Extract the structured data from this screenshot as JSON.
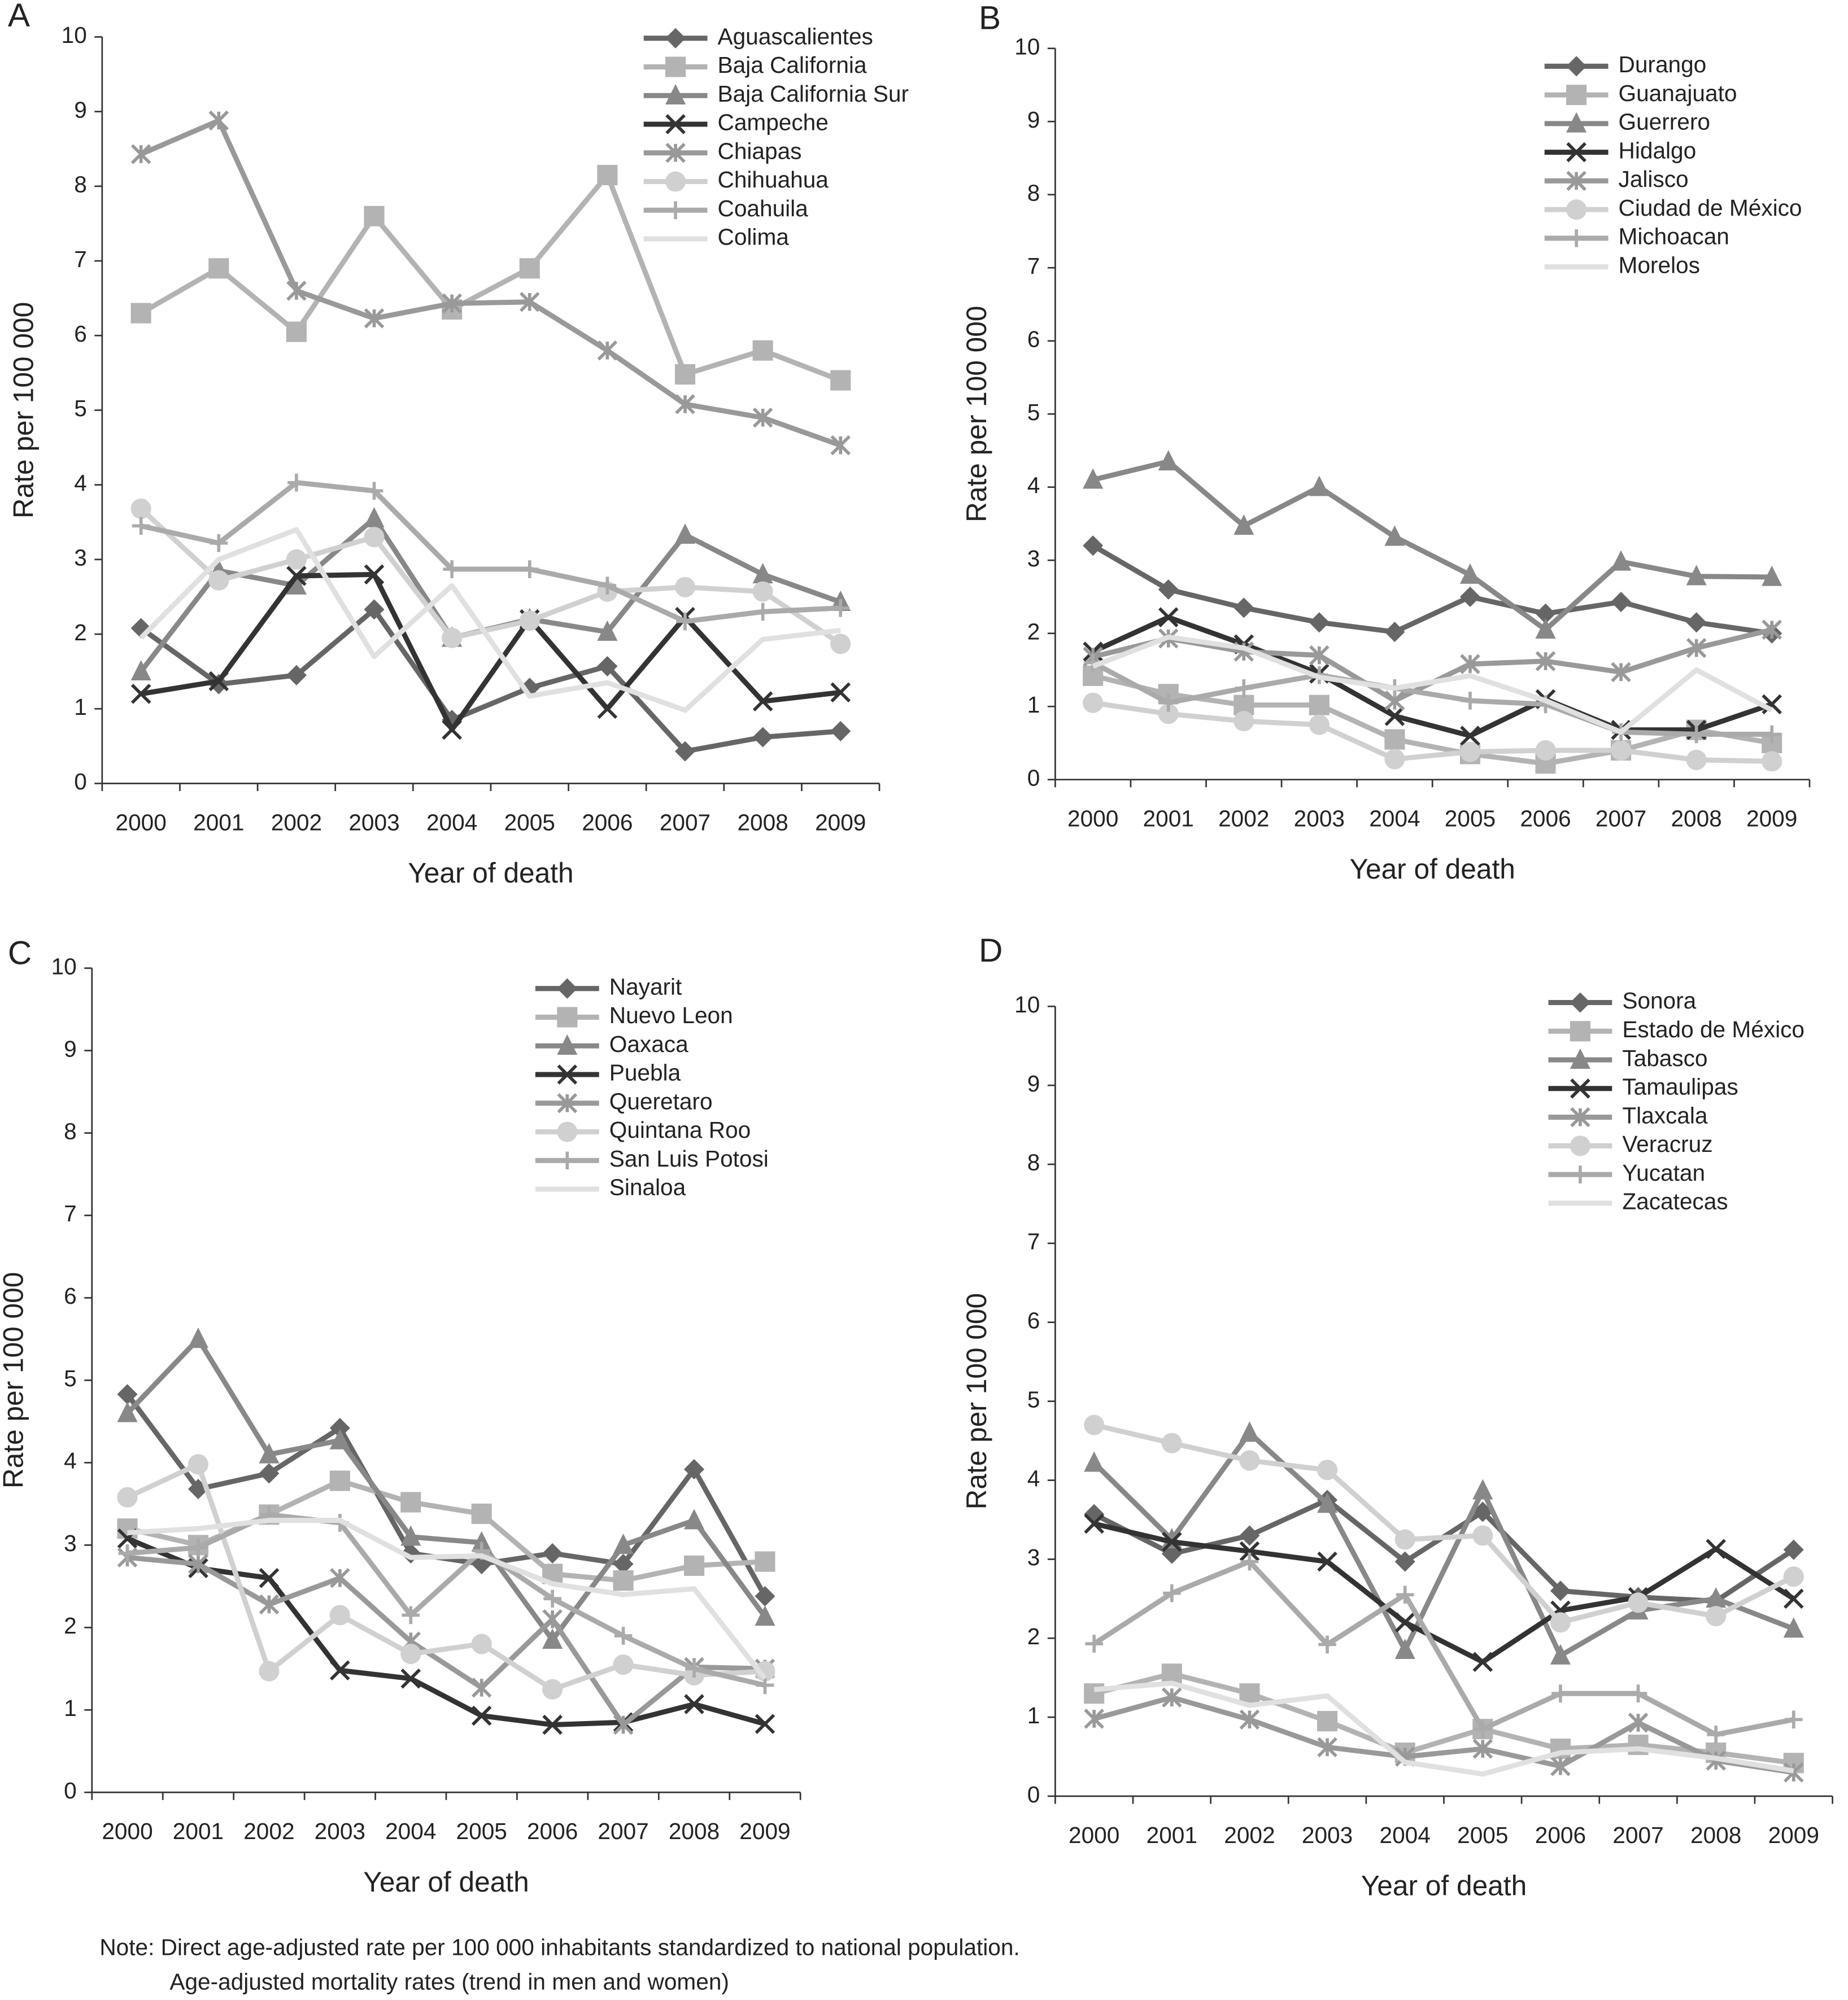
{
  "chart_data": [
    {
      "type": "line",
      "panel_label": "A",
      "xlabel": "Year of death",
      "ylabel": "Rate per 100 000",
      "categories": [
        "2000",
        "2001",
        "2002",
        "2003",
        "2004",
        "2005",
        "2006",
        "2007",
        "2008",
        "2009"
      ],
      "ylim": [
        0,
        10
      ],
      "yticks": [
        0,
        1,
        2,
        3,
        4,
        5,
        6,
        7,
        8,
        9,
        10
      ],
      "legend": "upper right",
      "series": [
        {
          "name": "Aguascalientes",
          "color": "#666666",
          "marker": "diamond",
          "values": [
            2.08,
            1.33,
            1.45,
            2.33,
            0.85,
            1.28,
            1.57,
            0.43,
            0.62,
            0.7
          ]
        },
        {
          "name": "Baja California",
          "color": "#b3b3b3",
          "marker": "square",
          "values": [
            6.3,
            6.9,
            6.05,
            7.6,
            6.35,
            6.9,
            8.15,
            5.48,
            5.8,
            5.4
          ]
        },
        {
          "name": "Baja California Sur",
          "color": "#888888",
          "marker": "triangle",
          "values": [
            1.5,
            2.85,
            2.65,
            3.55,
            1.95,
            2.2,
            2.03,
            3.33,
            2.8,
            2.43
          ]
        },
        {
          "name": "Campeche",
          "color": "#333333",
          "marker": "x",
          "values": [
            1.2,
            1.37,
            2.78,
            2.8,
            0.72,
            2.2,
            1.0,
            2.23,
            1.1,
            1.22
          ]
        },
        {
          "name": "Chiapas",
          "color": "#999999",
          "marker": "asterisk",
          "values": [
            8.43,
            8.88,
            6.6,
            6.23,
            6.43,
            6.45,
            5.8,
            5.08,
            4.9,
            4.53
          ]
        },
        {
          "name": "Chihuahua",
          "color": "#d0d0d0",
          "marker": "circle",
          "values": [
            3.68,
            2.72,
            3.0,
            3.3,
            1.95,
            2.18,
            2.57,
            2.63,
            2.57,
            1.87
          ]
        },
        {
          "name": "Coahuila",
          "color": "#aaaaaa",
          "marker": "plus",
          "values": [
            3.45,
            3.22,
            4.03,
            3.92,
            2.87,
            2.87,
            2.65,
            2.17,
            2.3,
            2.35
          ]
        },
        {
          "name": "Colima",
          "color": "#e0e0e0",
          "marker": "none",
          "values": [
            1.95,
            3.0,
            3.4,
            1.7,
            2.65,
            1.17,
            1.35,
            0.98,
            1.93,
            2.05
          ]
        }
      ]
    },
    {
      "type": "line",
      "panel_label": "B",
      "xlabel": "Year of death",
      "ylabel": "Rate per 100 000",
      "categories": [
        "2000",
        "2001",
        "2002",
        "2003",
        "2004",
        "2005",
        "2006",
        "2007",
        "2008",
        "2009"
      ],
      "ylim": [
        0,
        10
      ],
      "yticks": [
        0,
        1,
        2,
        3,
        4,
        5,
        6,
        7,
        8,
        9,
        10
      ],
      "legend": "upper right",
      "series": [
        {
          "name": "Durango",
          "color": "#666666",
          "marker": "diamond",
          "values": [
            3.2,
            2.6,
            2.35,
            2.15,
            2.02,
            2.5,
            2.27,
            2.43,
            2.15,
            2.0
          ]
        },
        {
          "name": "Guanajuato",
          "color": "#b3b3b3",
          "marker": "square",
          "values": [
            1.42,
            1.17,
            1.02,
            1.02,
            0.55,
            0.35,
            0.22,
            0.4,
            0.68,
            0.5
          ]
        },
        {
          "name": "Guerrero",
          "color": "#888888",
          "marker": "triangle",
          "values": [
            4.1,
            4.35,
            3.47,
            4.0,
            3.32,
            2.8,
            2.05,
            2.98,
            2.78,
            2.77
          ]
        },
        {
          "name": "Hidalgo",
          "color": "#333333",
          "marker": "x",
          "values": [
            1.75,
            2.22,
            1.85,
            1.45,
            0.87,
            0.6,
            1.1,
            0.68,
            0.68,
            1.03
          ]
        },
        {
          "name": "Jalisco",
          "color": "#999999",
          "marker": "asterisk",
          "values": [
            1.68,
            1.93,
            1.75,
            1.7,
            1.08,
            1.58,
            1.62,
            1.47,
            1.8,
            2.05
          ]
        },
        {
          "name": "Ciudad de México",
          "color": "#d0d0d0",
          "marker": "circle",
          "values": [
            1.05,
            0.9,
            0.8,
            0.75,
            0.28,
            0.38,
            0.4,
            0.4,
            0.27,
            0.25
          ]
        },
        {
          "name": "Michoacan",
          "color": "#aaaaaa",
          "marker": "plus",
          "values": [
            1.6,
            1.05,
            1.25,
            1.43,
            1.25,
            1.08,
            1.03,
            0.65,
            0.62,
            0.62
          ]
        },
        {
          "name": "Morelos",
          "color": "#e0e0e0",
          "marker": "none",
          "values": [
            1.55,
            1.95,
            1.8,
            1.4,
            1.25,
            1.42,
            1.08,
            0.65,
            1.5,
            0.95
          ]
        }
      ]
    },
    {
      "type": "line",
      "panel_label": "C",
      "xlabel": "Year of death",
      "ylabel": "Rate per 100 000",
      "categories": [
        "2000",
        "2001",
        "2002",
        "2003",
        "2004",
        "2005",
        "2006",
        "2007",
        "2008",
        "2009"
      ],
      "ylim": [
        0,
        10
      ],
      "yticks": [
        0,
        1,
        2,
        3,
        4,
        5,
        6,
        7,
        8,
        9,
        10
      ],
      "legend": "upper right",
      "series": [
        {
          "name": "Nayarit",
          "color": "#666666",
          "marker": "diamond",
          "values": [
            4.83,
            3.68,
            3.87,
            4.42,
            2.9,
            2.77,
            2.9,
            2.77,
            3.92,
            2.38
          ]
        },
        {
          "name": "Nuevo Leon",
          "color": "#b3b3b3",
          "marker": "square",
          "values": [
            3.2,
            3.0,
            3.37,
            3.78,
            3.52,
            3.38,
            2.65,
            2.57,
            2.75,
            2.8
          ]
        },
        {
          "name": "Oaxaca",
          "color": "#888888",
          "marker": "triangle",
          "values": [
            4.6,
            5.5,
            4.1,
            4.27,
            3.1,
            3.03,
            1.85,
            3.0,
            3.3,
            2.13
          ]
        },
        {
          "name": "Puebla",
          "color": "#333333",
          "marker": "x",
          "values": [
            3.08,
            2.72,
            2.6,
            1.48,
            1.38,
            0.93,
            0.82,
            0.85,
            1.07,
            0.83
          ]
        },
        {
          "name": "Queretaro",
          "color": "#999999",
          "marker": "asterisk",
          "values": [
            2.85,
            2.77,
            2.28,
            2.6,
            1.83,
            1.27,
            2.1,
            0.82,
            1.52,
            1.5
          ]
        },
        {
          "name": "Quintana Roo",
          "color": "#d0d0d0",
          "marker": "circle",
          "values": [
            3.58,
            3.98,
            1.47,
            2.15,
            1.68,
            1.8,
            1.25,
            1.55,
            1.42,
            1.47
          ]
        },
        {
          "name": "San Luis Potosi",
          "color": "#aaaaaa",
          "marker": "plus",
          "values": [
            2.9,
            2.97,
            3.37,
            3.27,
            2.15,
            2.93,
            2.35,
            1.9,
            1.5,
            1.3
          ]
        },
        {
          "name": "Sinaloa",
          "color": "#e0e0e0",
          "marker": "none",
          "values": [
            3.15,
            3.2,
            3.3,
            3.3,
            2.85,
            2.87,
            2.53,
            2.4,
            2.47,
            1.38
          ]
        }
      ]
    },
    {
      "type": "line",
      "panel_label": "D",
      "xlabel": "Year of death",
      "ylabel": "Rate per 100 000",
      "categories": [
        "2000",
        "2001",
        "2002",
        "2003",
        "2004",
        "2005",
        "2006",
        "2007",
        "2008",
        "2009"
      ],
      "ylim": [
        0,
        10
      ],
      "yticks": [
        0,
        1,
        2,
        3,
        4,
        5,
        6,
        7,
        8,
        9,
        10
      ],
      "legend": "upper right",
      "series": [
        {
          "name": "Sonora",
          "color": "#666666",
          "marker": "diamond",
          "values": [
            3.57,
            3.07,
            3.3,
            3.75,
            2.97,
            3.6,
            2.6,
            2.52,
            2.47,
            3.12
          ]
        },
        {
          "name": "Estado de México",
          "color": "#b3b3b3",
          "marker": "square",
          "values": [
            1.3,
            1.55,
            1.3,
            0.95,
            0.55,
            0.85,
            0.6,
            0.65,
            0.55,
            0.42
          ]
        },
        {
          "name": "Tabasco",
          "color": "#888888",
          "marker": "triangle",
          "values": [
            4.22,
            3.25,
            4.6,
            3.7,
            1.85,
            3.87,
            1.78,
            2.35,
            2.5,
            2.12
          ]
        },
        {
          "name": "Tamaulipas",
          "color": "#333333",
          "marker": "x",
          "values": [
            3.45,
            3.22,
            3.1,
            2.97,
            2.2,
            1.7,
            2.35,
            2.52,
            3.13,
            2.5
          ]
        },
        {
          "name": "Tlaxcala",
          "color": "#999999",
          "marker": "asterisk",
          "values": [
            0.98,
            1.25,
            0.97,
            0.62,
            0.5,
            0.6,
            0.38,
            0.93,
            0.45,
            0.3
          ]
        },
        {
          "name": "Veracruz",
          "color": "#d0d0d0",
          "marker": "circle",
          "values": [
            4.7,
            4.47,
            4.25,
            4.13,
            3.25,
            3.3,
            2.2,
            2.45,
            2.28,
            2.78
          ]
        },
        {
          "name": "Yucatan",
          "color": "#aaaaaa",
          "marker": "plus",
          "values": [
            1.93,
            2.57,
            2.97,
            1.92,
            2.55,
            0.85,
            1.3,
            1.3,
            0.78,
            0.97
          ]
        },
        {
          "name": "Zacatecas",
          "color": "#e0e0e0",
          "marker": "none",
          "values": [
            1.35,
            1.43,
            1.15,
            1.27,
            0.43,
            0.28,
            0.55,
            0.6,
            0.48,
            0.32
          ]
        }
      ]
    }
  ],
  "notes": [
    "Note: Direct age-adjusted rate per 100 000 inhabitants standardized to national population.",
    "Age-adjusted mortality rates (trend in men and women)"
  ]
}
